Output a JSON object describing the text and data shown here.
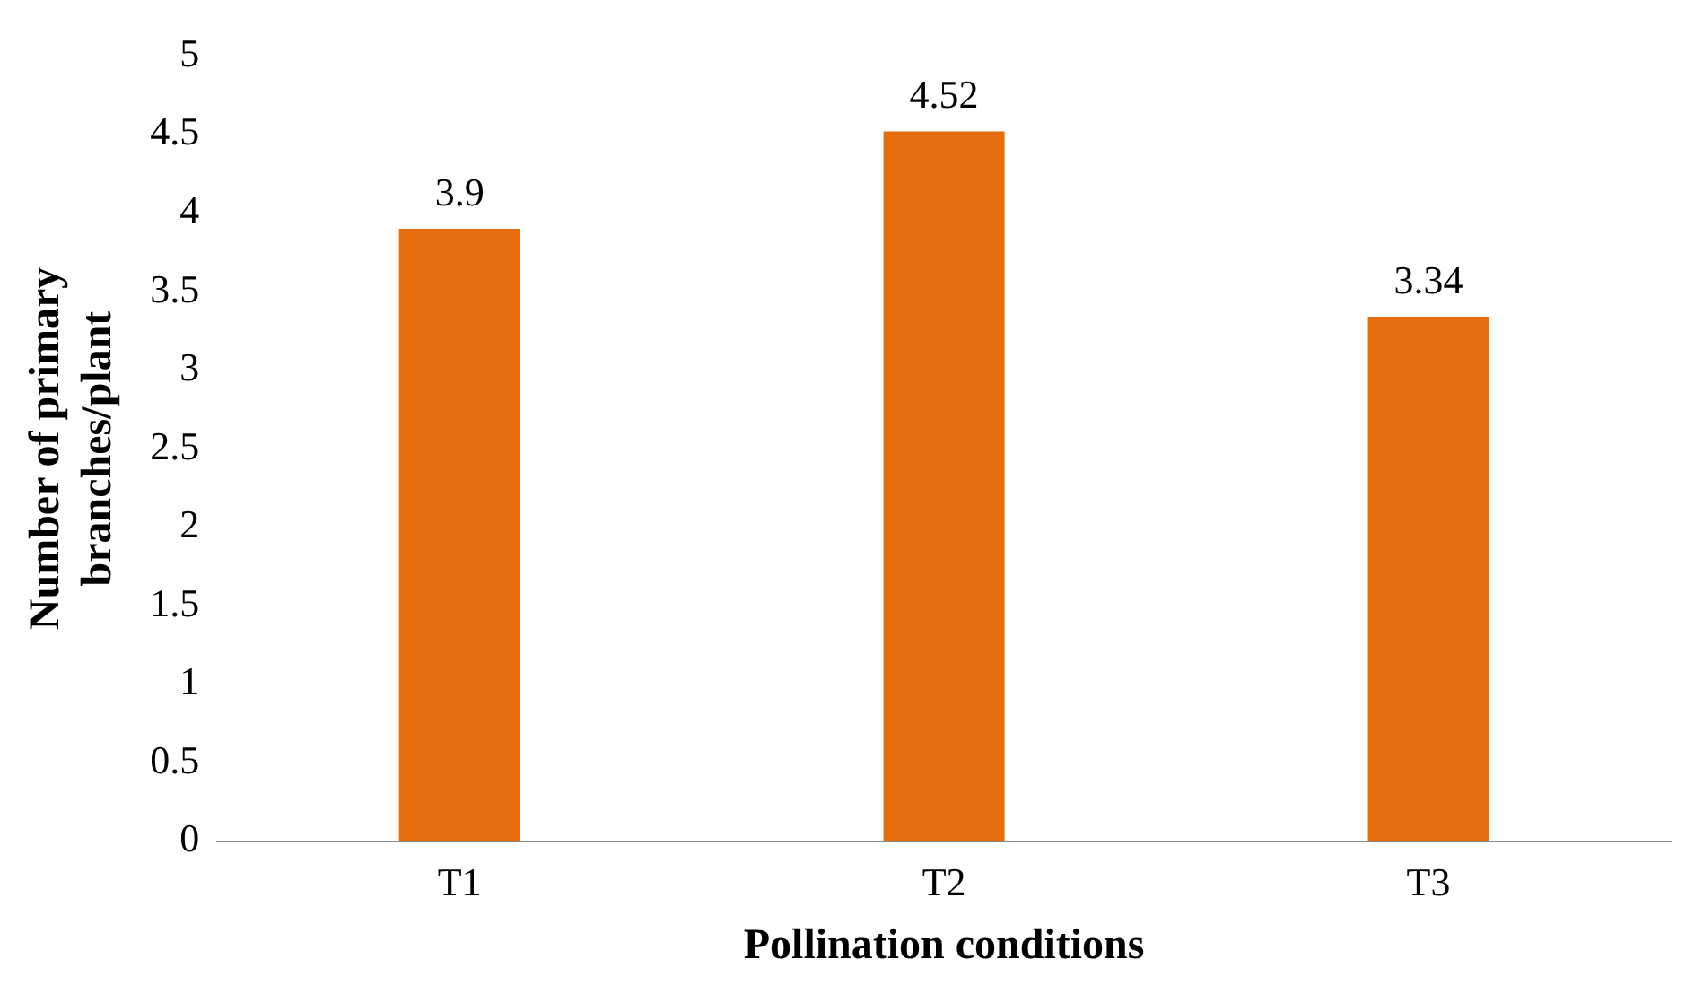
{
  "chart_data": {
    "type": "bar",
    "xlabel": "Pollination conditions",
    "ylabel": "Number of primary branches/plant",
    "categories": [
      "T1",
      "T2",
      "T3"
    ],
    "series": [
      {
        "color": "#e46c0a",
        "values": [
          3.9,
          4.52,
          3.34
        ]
      }
    ],
    "ylim": [
      0,
      5
    ],
    "yticks": [
      0,
      0.5,
      1,
      1.5,
      2,
      2.5,
      3,
      3.5,
      4,
      4.5,
      5
    ],
    "grid": false,
    "legend": false,
    "data_labels": true
  }
}
